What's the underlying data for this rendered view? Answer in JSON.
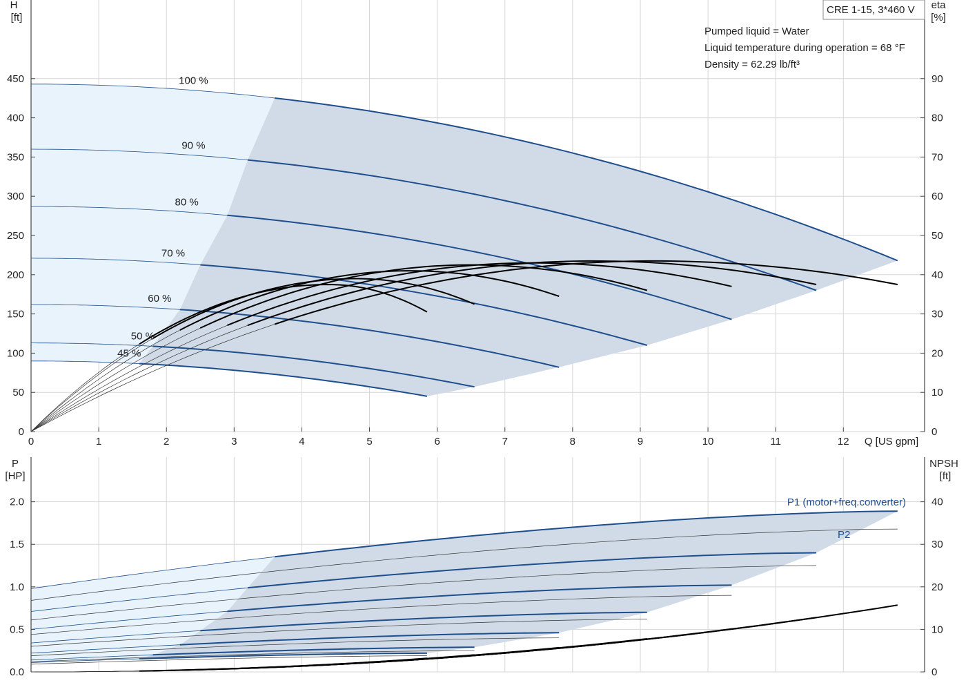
{
  "chart_data": [
    {
      "type": "line",
      "title": "CRE 1-15, 3*460 V",
      "xlabel": "Q [US gpm]",
      "x_ticks": [
        0,
        1,
        2,
        3,
        4,
        5,
        6,
        7,
        8,
        9,
        10,
        11,
        12
      ],
      "xlim": [
        0,
        13.2
      ],
      "ylabel_left": {
        "line1": "H",
        "line2": "[ft]"
      },
      "ylim_left": [
        0,
        500
      ],
      "y_ticks_left": [
        0,
        50,
        100,
        150,
        200,
        250,
        300,
        350,
        400,
        450
      ],
      "ylabel_right": {
        "line1": "eta",
        "line2": "[%]"
      },
      "ylim_right": [
        0,
        100
      ],
      "y_ticks_right": [
        0,
        10,
        20,
        30,
        40,
        50,
        60,
        70,
        80,
        90
      ],
      "grid": true,
      "annotations": [
        "Pumped liquid = Water",
        "Liquid temperature during operation = 68 °F",
        "Density = 62.29 lb/ft³"
      ],
      "head_curves": [
        {
          "name": "100 %",
          "qmax": 12.8,
          "h0": 443,
          "hend": 218,
          "qmin": 3.6
        },
        {
          "name": "90 %",
          "qmax": 11.6,
          "h0": 360,
          "hend": 180,
          "qmin": 3.2
        },
        {
          "name": "80 %",
          "qmax": 10.35,
          "h0": 287,
          "hend": 143,
          "qmin": 2.9
        },
        {
          "name": "70 %",
          "qmax": 9.1,
          "h0": 221,
          "hend": 110,
          "qmin": 2.5
        },
        {
          "name": "60 %",
          "qmax": 7.8,
          "h0": 162,
          "hend": 82,
          "qmin": 2.2
        },
        {
          "name": "50 %",
          "qmax": 6.55,
          "h0": 113,
          "hend": 57,
          "qmin": 1.8
        },
        {
          "name": "45 %",
          "qmax": 5.85,
          "h0": 90,
          "hend": 45,
          "qmin": 1.6
        }
      ],
      "eta_curves": [
        {
          "qpeak": 9.2,
          "peak": 43.5,
          "qmax": 12.8,
          "etaend": 37.5,
          "qmin": 3.6
        },
        {
          "qpeak": 8.3,
          "peak": 43.5,
          "qmax": 11.6,
          "etaend": 37.5,
          "qmin": 3.2
        },
        {
          "qpeak": 7.4,
          "peak": 43.0,
          "qmax": 10.35,
          "etaend": 37.0,
          "qmin": 2.9
        },
        {
          "qpeak": 6.5,
          "peak": 42.5,
          "qmax": 9.1,
          "etaend": 36.0,
          "qmin": 2.5
        },
        {
          "qpeak": 5.6,
          "peak": 41.0,
          "qmax": 7.8,
          "etaend": 34.5,
          "qmin": 2.2
        },
        {
          "qpeak": 4.8,
          "peak": 39.0,
          "qmax": 6.55,
          "etaend": 32.5,
          "qmin": 1.8
        },
        {
          "qpeak": 4.4,
          "peak": 37.5,
          "qmax": 5.85,
          "etaend": 30.5,
          "qmin": 1.6
        }
      ]
    },
    {
      "type": "line",
      "ylabel_left": {
        "line1": "P",
        "line2": "[HP]"
      },
      "ylim_left": [
        0,
        2.2
      ],
      "y_ticks_left": [
        "0.0",
        "0.5",
        "1.0",
        "1.5",
        "2.0"
      ],
      "ylabel_right": {
        "line1": "NPSH",
        "line2": "[ft]"
      },
      "ylim_right": [
        0,
        44
      ],
      "y_ticks_right": [
        0,
        10,
        20,
        30,
        40
      ],
      "xlim": [
        0,
        13.2
      ],
      "grid": true,
      "series_labels": {
        "p1": "P1 (motor+freq.converter)",
        "p2": "P2"
      },
      "p1_curves": [
        {
          "qmax": 12.8,
          "p0": 0.98,
          "pend": 1.89,
          "qmin": 3.6
        },
        {
          "qmax": 11.6,
          "p0": 0.71,
          "pend": 1.4,
          "qmin": 3.2
        },
        {
          "qmax": 10.35,
          "p0": 0.5,
          "pend": 1.02,
          "qmin": 2.9
        },
        {
          "qmax": 9.1,
          "p0": 0.34,
          "pend": 0.7,
          "qmin": 2.5
        },
        {
          "qmax": 7.8,
          "p0": 0.22,
          "pend": 0.46,
          "qmin": 2.2
        },
        {
          "qmax": 6.55,
          "p0": 0.14,
          "pend": 0.29,
          "qmin": 1.8
        },
        {
          "qmax": 5.85,
          "p0": 0.11,
          "pend": 0.22,
          "qmin": 1.6
        }
      ],
      "p2_curves": [
        {
          "qmax": 12.8,
          "p0": 0.84,
          "pend": 1.68
        },
        {
          "qmax": 11.6,
          "p0": 0.61,
          "pend": 1.25
        },
        {
          "qmax": 10.35,
          "p0": 0.44,
          "pend": 0.9
        },
        {
          "qmax": 9.1,
          "p0": 0.3,
          "pend": 0.62
        },
        {
          "qmax": 7.8,
          "p0": 0.19,
          "pend": 0.4
        },
        {
          "qmax": 6.55,
          "p0": 0.12,
          "pend": 0.25
        },
        {
          "qmax": 5.85,
          "p0": 0.09,
          "pend": 0.19
        }
      ],
      "npsh_curves": [
        {
          "qstart": 3.6,
          "qmax": 12.8,
          "nend": 15.7
        },
        {
          "qstart": 3.2,
          "qmax": 11.6,
          "nend": 12.8
        },
        {
          "qstart": 2.9,
          "qmax": 10.35,
          "nend": 10.1
        },
        {
          "qstart": 2.5,
          "qmax": 9.1,
          "nend": 7.8
        },
        {
          "qstart": 2.2,
          "qmax": 7.8,
          "nend": 5.7
        },
        {
          "qstart": 1.8,
          "qmax": 6.55,
          "nend": 4.0
        },
        {
          "qstart": 1.6,
          "qmax": 5.85,
          "nend": 3.2
        }
      ]
    }
  ],
  "colors": {
    "blue_line": "#1f4e8c",
    "region_main": "#d0dbe7",
    "region_light": "#e8f3fc",
    "thin_line": "#333333",
    "black_line": "#000000",
    "grid": "#d6d6d6"
  }
}
